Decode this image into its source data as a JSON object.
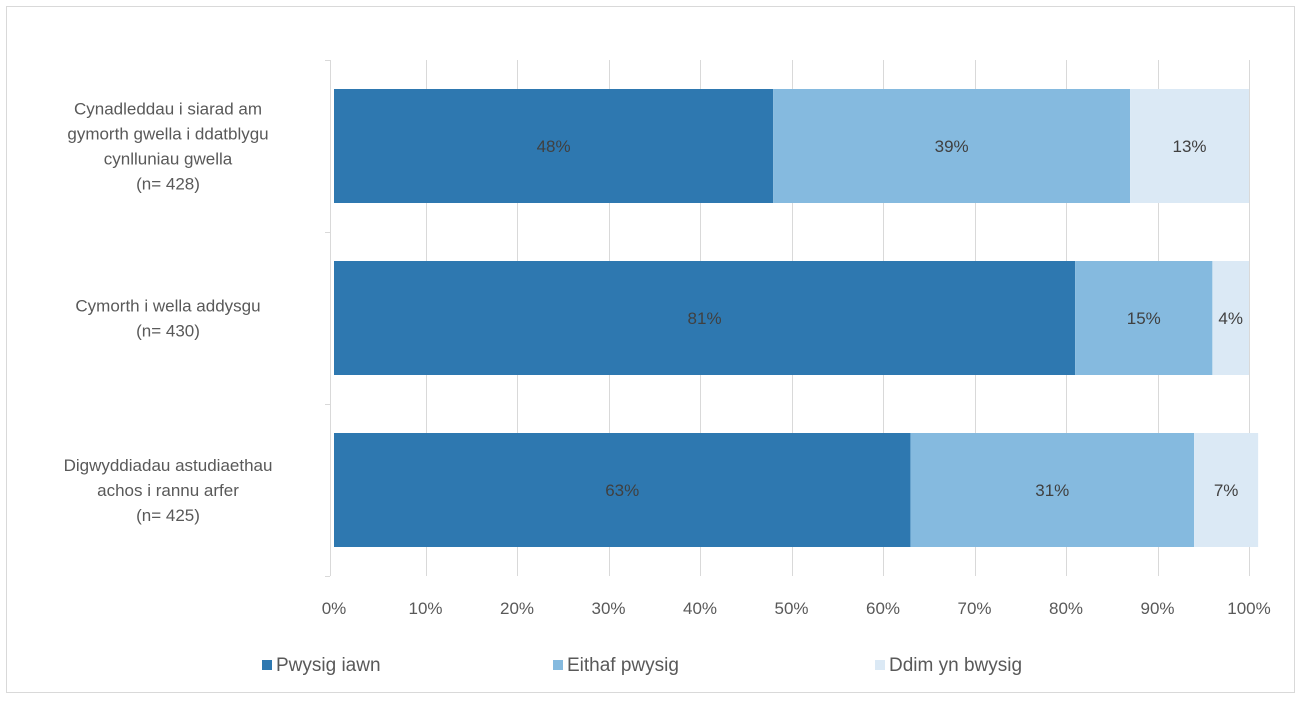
{
  "chart_data": {
    "type": "bar",
    "orientation": "horizontal",
    "stacked": true,
    "percent_stacked": true,
    "categories": [
      [
        "Cynadleddau i siarad am",
        "gymorth gwella i ddatblygu",
        "cynlluniau gwella",
        "(n= 428)"
      ],
      [
        "Cymorth i wella addysgu",
        "(n= 430)"
      ],
      [
        "Digwyddiadau astudiaethau",
        "achos i rannu arfer",
        "(n= 425)"
      ]
    ],
    "series": [
      {
        "name": "Pwysig iawn",
        "values": [
          48,
          81,
          63
        ],
        "labels": [
          "48%",
          "81%",
          "63%"
        ],
        "color": "#2e78b0"
      },
      {
        "name": "Eithaf pwysig",
        "values": [
          39,
          15,
          31
        ],
        "labels": [
          "39%",
          "15%",
          "31%"
        ],
        "color": "#85badf"
      },
      {
        "name": "Ddim yn bwysig",
        "values": [
          13,
          4,
          7
        ],
        "labels": [
          "13%",
          "4%",
          "7%"
        ],
        "color": "#dbe9f5"
      }
    ],
    "xlim": [
      0,
      100
    ],
    "xticks": [
      0,
      10,
      20,
      30,
      40,
      50,
      60,
      70,
      80,
      90,
      100
    ],
    "xtick_labels": [
      "0%",
      "10%",
      "20%",
      "30%",
      "40%",
      "50%",
      "60%",
      "70%",
      "80%",
      "90%",
      "100%"
    ],
    "grid": "vertical",
    "legend_position": "bottom",
    "frame_color": "#d9d9d9",
    "gridline_color": "#d9d9d9",
    "text_color": "#595959"
  }
}
